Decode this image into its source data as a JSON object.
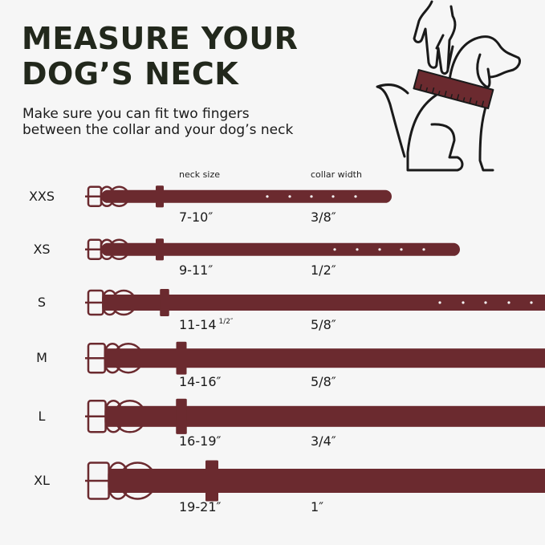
{
  "title": {
    "line1": "MEASURE YOUR",
    "line2": "DOG’S  NECK"
  },
  "subtitle": {
    "line1": "Make sure you can fit two fingers",
    "line2": "between the collar and your dog’s neck"
  },
  "headers": {
    "neck_size": "neck size",
    "collar_width": "collar width"
  },
  "colors": {
    "collar": "#6b2a2f",
    "title": "#22281c",
    "background": "#f6f6f6"
  },
  "illustration": {
    "icon": "hand-measuring-dog-neck-icon"
  },
  "sizes": [
    {
      "size": "XXS",
      "neck": "7-10″",
      "neck_fraction": "",
      "width": "3/8″"
    },
    {
      "size": "XS",
      "neck": "9-11″",
      "neck_fraction": "",
      "width": "1/2″"
    },
    {
      "size": "S",
      "neck": "11-14",
      "neck_fraction": "1/2″",
      "width": "5/8″"
    },
    {
      "size": "M",
      "neck": "14-16″",
      "neck_fraction": "",
      "width": "5/8″"
    },
    {
      "size": "L",
      "neck": "16-19″",
      "neck_fraction": "",
      "width": "3/4″"
    },
    {
      "size": "XL",
      "neck": "19-21″",
      "neck_fraction": "",
      "width": "1″"
    }
  ]
}
